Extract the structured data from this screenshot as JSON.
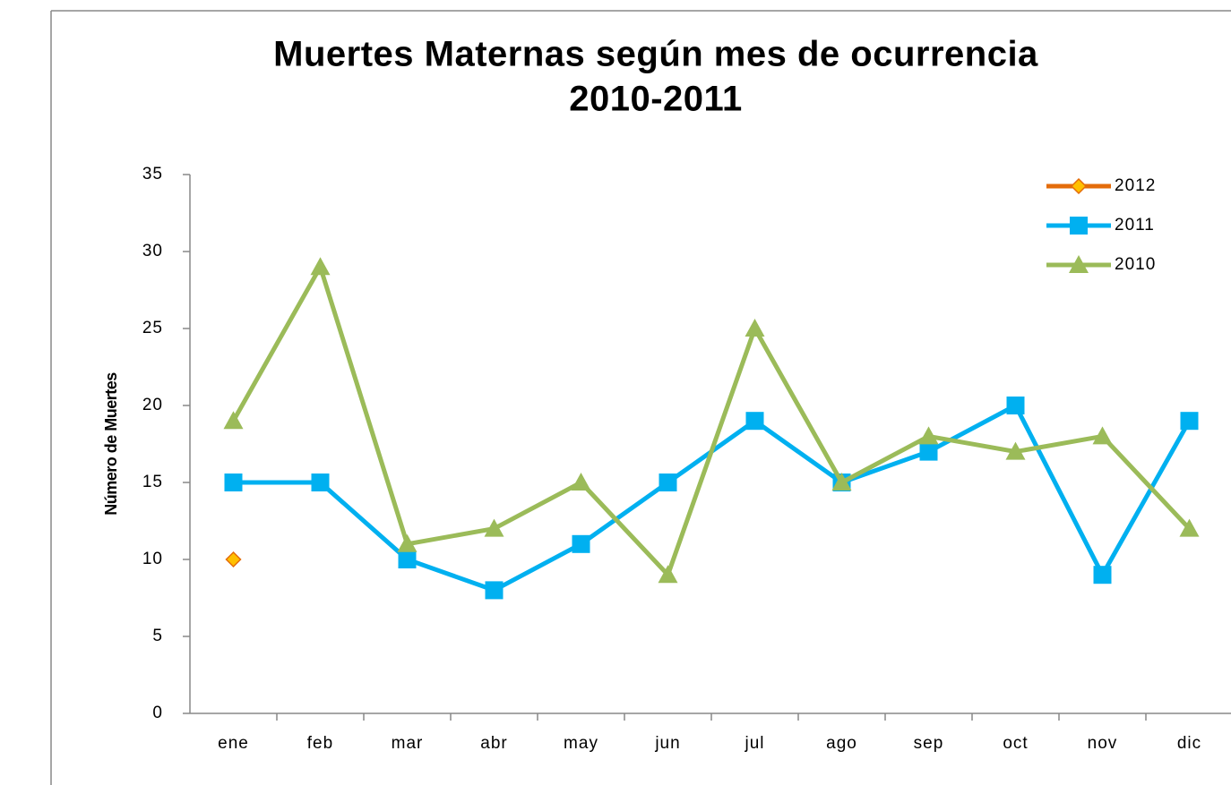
{
  "chart_data": {
    "type": "line",
    "title": [
      "Muertes Maternas según mes de ocurrencia",
      "2010-2011"
    ],
    "ylabel": "Número de Muertes",
    "categories": [
      "ene",
      "feb",
      "mar",
      "abr",
      "may",
      "jun",
      "jul",
      "ago",
      "sep",
      "oct",
      "nov",
      "dic"
    ],
    "series": [
      {
        "name": "2012",
        "color": "#e46c0a",
        "marker_fill": "#ffc000",
        "marker": "diamond",
        "values": [
          10,
          null,
          null,
          null,
          null,
          null,
          null,
          null,
          null,
          null,
          null,
          null
        ]
      },
      {
        "name": "2011",
        "color": "#00b0f0",
        "marker": "square",
        "values": [
          15,
          15,
          10,
          8,
          11,
          15,
          19,
          15,
          17,
          20,
          9,
          19
        ]
      },
      {
        "name": "2010",
        "color": "#9bbb59",
        "marker": "triangle",
        "values": [
          19,
          29,
          11,
          12,
          15,
          9,
          25,
          15,
          18,
          17,
          18,
          12
        ]
      }
    ],
    "ylim": [
      0,
      35
    ],
    "yticks": [
      0,
      5,
      10,
      15,
      20,
      25,
      30,
      35
    ],
    "grid": false,
    "legend": "upper right"
  }
}
